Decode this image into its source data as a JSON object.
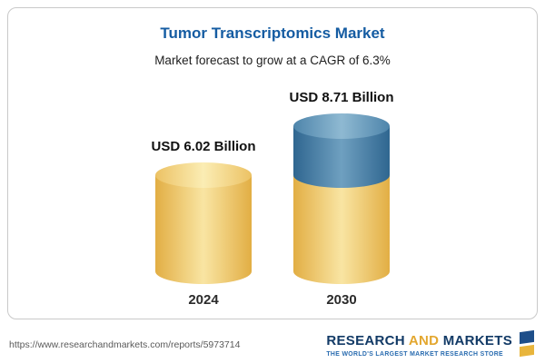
{
  "panel": {
    "title": "Tumor Transcriptomics Market",
    "subtitle": "Market forecast to grow at a CAGR of 6.3%"
  },
  "chart_data": {
    "type": "bar",
    "variant": "3d-cylinder",
    "title": "Tumor Transcriptomics Market",
    "subtitle": "Market forecast to grow at a CAGR of 6.3%",
    "unit": "USD Billion",
    "cagr_percent": 6.3,
    "categories": [
      "2024",
      "2030"
    ],
    "values": [
      6.02,
      8.71
    ],
    "value_labels": [
      "USD 6.02 Billion",
      "USD 8.71 Billion"
    ],
    "bars": [
      {
        "category": "2024",
        "value": 6.02,
        "label": "USD 6.02 Billion",
        "segments": [
          {
            "name": "base",
            "value": 6.02,
            "color": "#F0C95F"
          }
        ]
      },
      {
        "category": "2030",
        "value": 8.71,
        "label": "USD 8.71 Billion",
        "segments": [
          {
            "name": "base",
            "value": 6.02,
            "color": "#F0C95F"
          },
          {
            "name": "growth",
            "value": 2.69,
            "color": "#4179A4"
          }
        ]
      }
    ],
    "colors": {
      "base": "#F0C95F",
      "growth": "#4179A4"
    },
    "legend": "none",
    "grid": false
  },
  "footer": {
    "url": "https://www.researchandmarkets.com/reports/5973714",
    "logo": {
      "research": "RESEARCH",
      "and": "AND",
      "markets": "MARKETS",
      "tagline": "THE WORLD'S LARGEST MARKET RESEARCH STORE"
    }
  }
}
